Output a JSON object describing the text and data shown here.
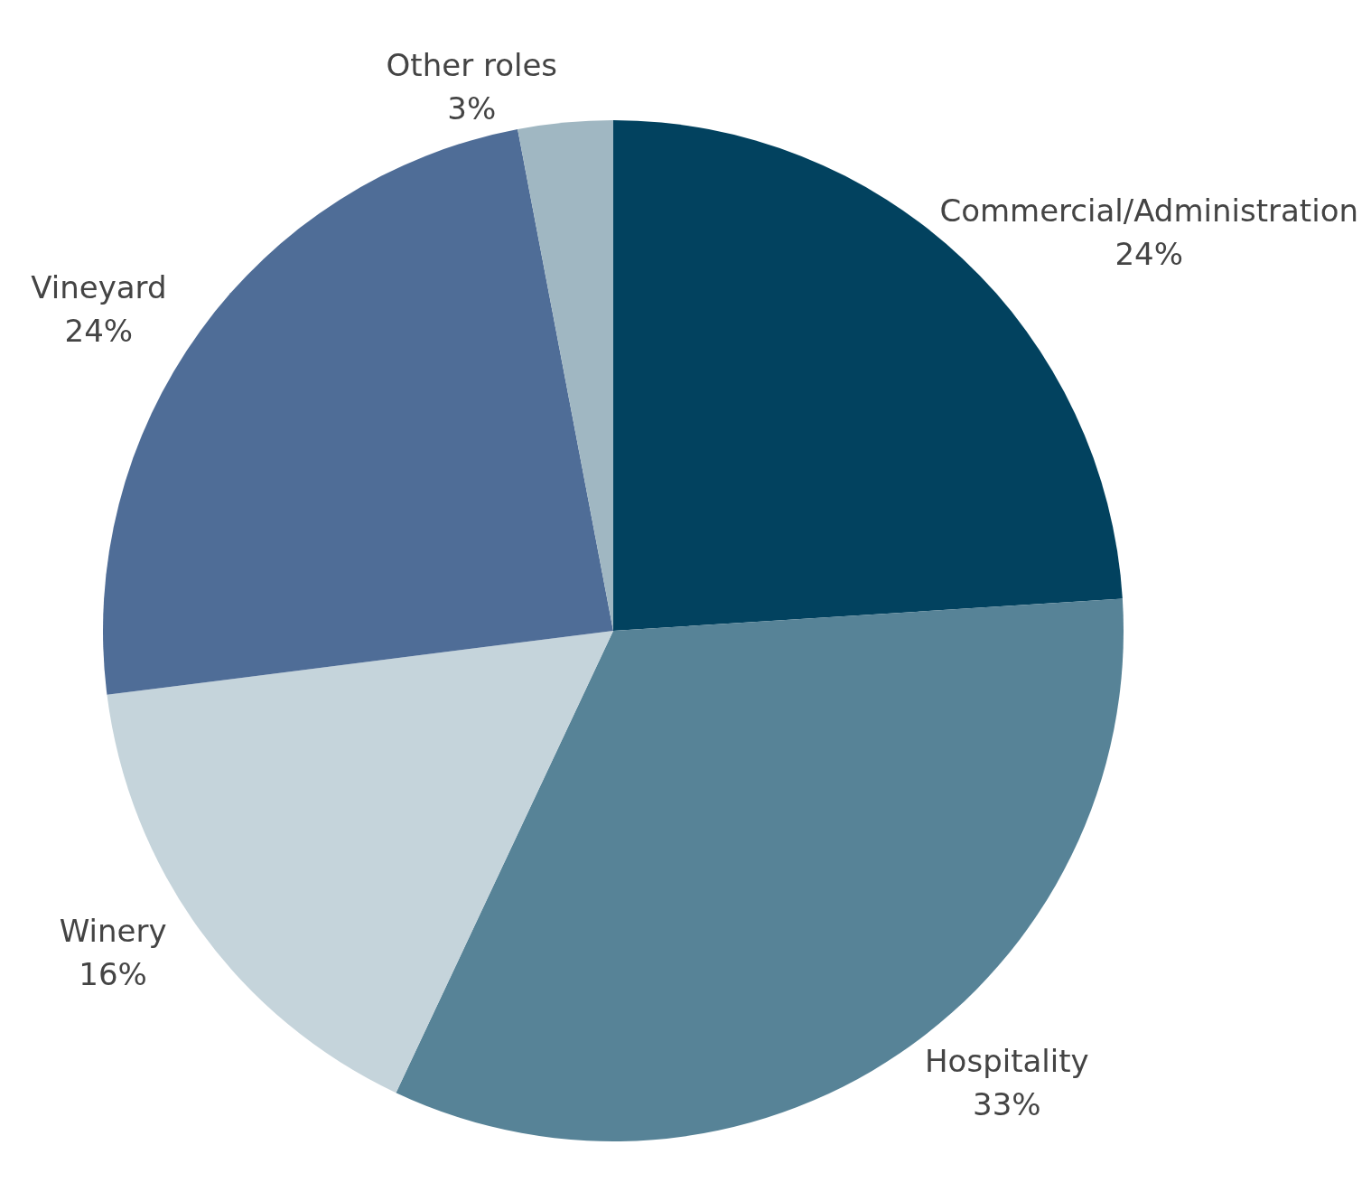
{
  "chart_data": {
    "type": "pie",
    "categories": [
      "Commercial/Administration",
      "Hospitality",
      "Winery",
      "Vineyard",
      "Other roles"
    ],
    "values": [
      24,
      33,
      16,
      24,
      3
    ],
    "value_labels": [
      "24%",
      "33%",
      "16%",
      "24%",
      "3%"
    ],
    "colors": [
      "#02425f",
      "#578397",
      "#c5d4db",
      "#4f6d97",
      "#a0b7c2"
    ],
    "legend": false
  }
}
